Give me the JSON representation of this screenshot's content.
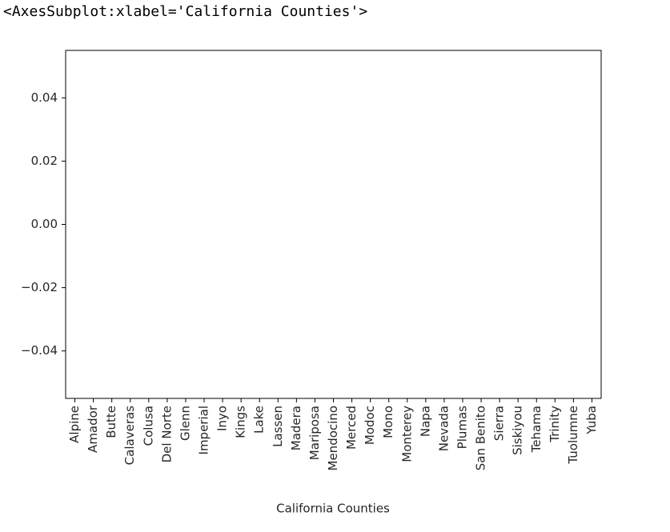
{
  "output_text": "<AxesSubplot:xlabel='California Counties'>",
  "chart_data": {
    "type": "bar",
    "xlabel": "California Counties",
    "categories": [
      "Alpine",
      "Amador",
      "Butte",
      "Calaveras",
      "Colusa",
      "Del Norte",
      "Glenn",
      "Imperial",
      "Inyo",
      "Kings",
      "Lake",
      "Lassen",
      "Madera",
      "Mariposa",
      "Mendocino",
      "Merced",
      "Modoc",
      "Mono",
      "Monterey",
      "Napa",
      "Nevada",
      "Plumas",
      "San Benito",
      "Sierra",
      "Siskiyou",
      "Tehama",
      "Trinity",
      "Tuolumne",
      "Yuba"
    ],
    "values": [
      null,
      null,
      null,
      null,
      null,
      null,
      null,
      null,
      null,
      null,
      null,
      null,
      null,
      null,
      null,
      null,
      null,
      null,
      null,
      null,
      null,
      null,
      null,
      null,
      null,
      null,
      null,
      null,
      null
    ],
    "color": "#1f77b4",
    "ylim": [
      -0.055,
      0.055
    ],
    "yticks": [
      {
        "value": -0.04,
        "label": "−0.04"
      },
      {
        "value": -0.02,
        "label": "−0.02"
      },
      {
        "value": 0,
        "label": "0.00"
      },
      0.02,
      0.04
    ],
    "grid": false
  }
}
